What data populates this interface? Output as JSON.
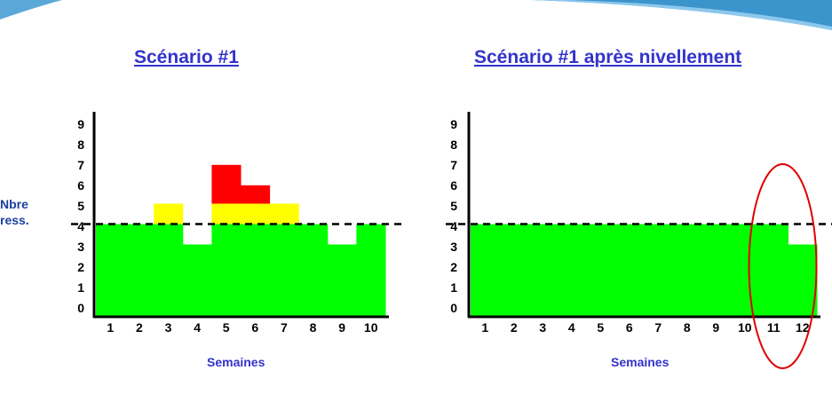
{
  "ylabel_lines": [
    "Nbre",
    "ress."
  ],
  "colors": {
    "base": "#00ff00",
    "mid": "#ffff00",
    "top": "#ff0000",
    "line": "#000000",
    "ellipse": "#e00000"
  },
  "chart_data": [
    {
      "type": "bar",
      "stacked": true,
      "title": "Scénario #1",
      "xlabel": "Semaines",
      "categories": [
        "1",
        "2",
        "3",
        "4",
        "5",
        "6",
        "7",
        "8",
        "9",
        "10"
      ],
      "y_ticks": [
        "0",
        "1",
        "2",
        "3",
        "4",
        "5",
        "6",
        "7",
        "8",
        "9"
      ],
      "capacity": 4.5,
      "series": [
        {
          "color": "#00ff00",
          "values": [
            4.5,
            4.5,
            4.5,
            3.5,
            4.5,
            4.5,
            4.5,
            4.5,
            3.5,
            4.5
          ]
        },
        {
          "color": "#ffff00",
          "values": [
            0,
            0,
            1,
            0,
            1,
            1,
            1,
            0,
            0,
            0
          ]
        },
        {
          "color": "#ff0000",
          "values": [
            0,
            0,
            0,
            0,
            1.9,
            0.9,
            0,
            0,
            0,
            0
          ]
        }
      ]
    },
    {
      "type": "bar",
      "stacked": true,
      "title": "Scénario #1 après nivellement",
      "xlabel": "Semaines",
      "categories": [
        "1",
        "2",
        "3",
        "4",
        "5",
        "6",
        "7",
        "8",
        "9",
        "10",
        "11",
        "12"
      ],
      "y_ticks": [
        "0",
        "1",
        "2",
        "3",
        "4",
        "5",
        "6",
        "7",
        "8",
        "9"
      ],
      "capacity": 4.5,
      "highlight": [
        "11",
        "12"
      ],
      "series": [
        {
          "color": "#00ff00",
          "values": [
            4.5,
            4.5,
            4.5,
            4.5,
            4.5,
            4.5,
            4.5,
            4.5,
            4.5,
            4.5,
            4.5,
            3.5
          ]
        }
      ]
    }
  ]
}
